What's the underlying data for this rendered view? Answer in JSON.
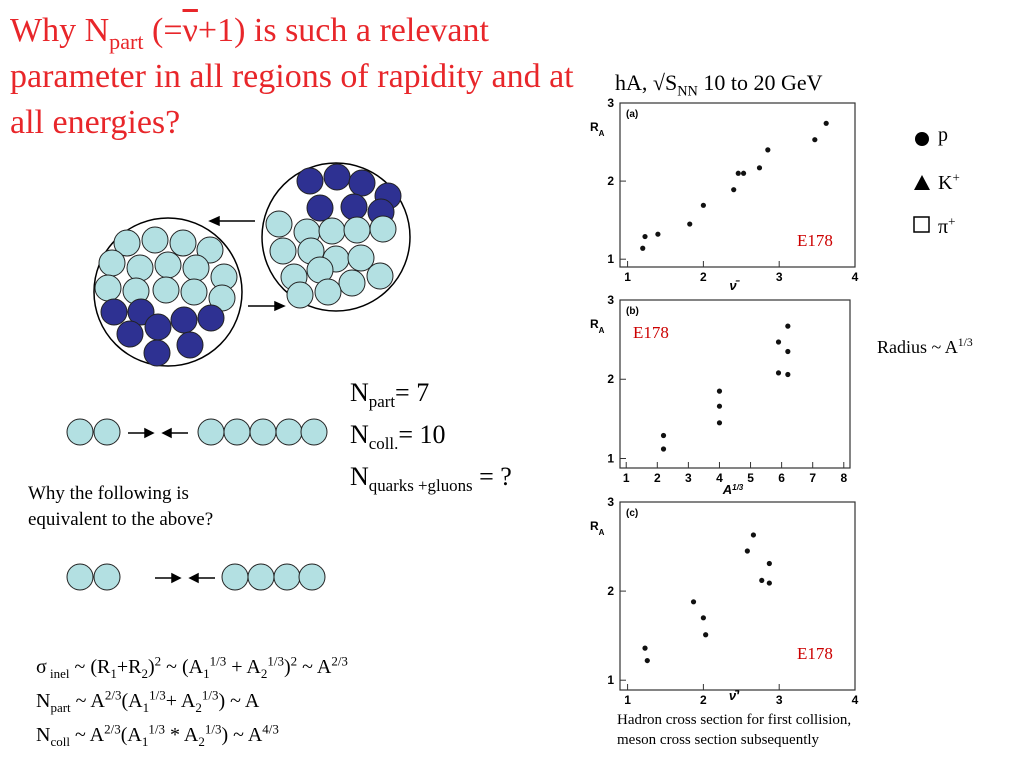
{
  "title": [
    "Why N",
    "part",
    " (=",
    "ν",
    "+1) is such a relevant parameter in all regions of rapidity and at all energies?"
  ],
  "plot_header": [
    "hA, √S",
    "NN",
    " 10 to 20 GeV"
  ],
  "legend": [
    [
      "p"
    ],
    [
      "K",
      "+"
    ],
    [
      "π",
      "+"
    ]
  ],
  "radius_note": [
    "Radius ~ A",
    "1/3"
  ],
  "counts": [
    [
      "N",
      "part",
      "= 7"
    ],
    [
      "N",
      "coll.",
      "= 10"
    ],
    [
      "N",
      "quarks +gluons",
      " = ?"
    ]
  ],
  "question": [
    "Why the following is",
    "equivalent to the above?"
  ],
  "formulas": [
    [
      "σ",
      " inel",
      " ~ (R",
      "1",
      "+R",
      "2",
      ")",
      "2",
      " ~ (A",
      "1",
      "1/3",
      " + A",
      "2",
      "1/3",
      ")",
      "2",
      " ~ A",
      "2/3"
    ],
    [
      "N",
      "part",
      " ~ A",
      "2/3",
      "(A",
      "1",
      "1/3",
      "+ A",
      "2",
      "1/3",
      ") ~ A"
    ],
    [
      "N",
      "coll",
      " ~ A",
      "2/3",
      "(A",
      "1",
      "1/3",
      " * A",
      "2",
      "1/3",
      ") ~ A",
      "4/3"
    ]
  ],
  "caption": [
    "Hadron cross section for first collision,",
    "meson cross section subsequently"
  ],
  "panels": [
    {
      "label": "(a)",
      "y_label": [
        "R",
        "A"
      ],
      "x_label": [
        "ν̄"
      ],
      "annotation": "E178",
      "xlim": [
        0.9,
        4.0
      ],
      "ylim": [
        0.9,
        3.0
      ],
      "xticks": [
        1,
        2,
        3,
        4
      ],
      "yticks": [
        1,
        2,
        3
      ],
      "points": {
        "x": [
          1.23,
          2.0,
          2.74,
          2.85,
          1.2,
          1.4,
          1.82,
          2.4,
          2.46,
          2.53,
          3.47,
          3.62
        ],
        "y": [
          1.29,
          1.69,
          2.17,
          2.4,
          1.14,
          1.32,
          1.45,
          1.89,
          2.1,
          2.1,
          2.53,
          2.74
        ]
      }
    },
    {
      "label": "(b)",
      "y_label": [
        "R",
        "A"
      ],
      "x_label": [
        "A",
        "1/3"
      ],
      "annotation": "E178",
      "xlim": [
        0.8,
        8.2
      ],
      "ylim": [
        0.88,
        3.0
      ],
      "xticks": [
        1,
        2,
        3,
        4,
        5,
        6,
        7,
        8
      ],
      "yticks": [
        1,
        2,
        3
      ],
      "points": {
        "x": [
          2.2,
          2.2,
          4.0,
          4.0,
          4.0,
          5.9,
          6.2,
          6.2,
          5.9,
          6.2
        ],
        "y": [
          1.29,
          1.12,
          1.85,
          1.66,
          1.45,
          2.47,
          2.67,
          2.35,
          2.08,
          2.06
        ]
      }
    },
    {
      "label": "(c)",
      "y_label": [
        "R",
        "A"
      ],
      "x_label": [
        "ν̄'"
      ],
      "annotation": "E178",
      "xlim": [
        0.9,
        4.0
      ],
      "ylim": [
        0.89,
        3.0
      ],
      "xticks": [
        1,
        2,
        3,
        4
      ],
      "yticks": [
        1,
        2,
        3
      ],
      "points": {
        "x": [
          1.23,
          1.26,
          1.87,
          2.0,
          2.03,
          2.58,
          2.66,
          2.77,
          2.87,
          2.87
        ],
        "y": [
          1.36,
          1.22,
          1.88,
          1.7,
          1.51,
          2.45,
          2.63,
          2.12,
          2.31,
          2.09
        ]
      }
    }
  ]
}
